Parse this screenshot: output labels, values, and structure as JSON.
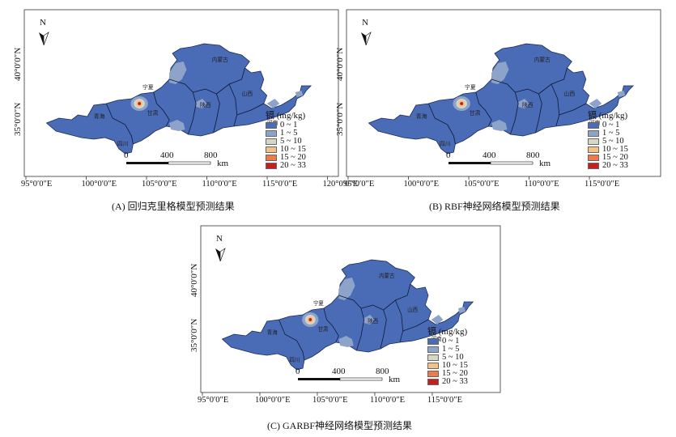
{
  "legend": {
    "title": "镉 (mg/kg)",
    "classes": [
      {
        "label": "0 ~ 1",
        "color": "#4a6bb5"
      },
      {
        "label": "1 ~ 5",
        "color": "#8ea3c9"
      },
      {
        "label": "5 ~ 10",
        "color": "#d4d6c6"
      },
      {
        "label": "10 ~ 15",
        "color": "#f2c186"
      },
      {
        "label": "15 ~ 20",
        "color": "#ee7a4c"
      },
      {
        "label": "20 ~ 33",
        "color": "#c81e1e"
      }
    ]
  },
  "north_label": "N",
  "scale": {
    "t0": "0",
    "t1": "400",
    "t2": "800",
    "unit": "km"
  },
  "lat_labels": [
    "40°0′0″N",
    "35°0′0″N"
  ],
  "provinces": [
    "内蒙古",
    "宁夏",
    "甘肃",
    "陕西",
    "山西",
    "青海",
    "河南",
    "四川"
  ],
  "panels": [
    {
      "caption": "(A) 回归克里格模型预测结果",
      "lon_labels": [
        "95°0′0″E",
        "100°0′0″E",
        "105°0′0″E",
        "110°0′0″E",
        "115°0′0″E",
        "120°0′0″E"
      ]
    },
    {
      "caption": "(B) RBF神经网络模型预测结果",
      "lon_labels": [
        "95°0′0″E",
        "100°0′0″E",
        "105°0′0″E",
        "110°0′0″E",
        "115°0′0″E"
      ]
    },
    {
      "caption": "(C) GARBF神经网络模型预测结果",
      "lon_labels": [
        "95°0′0″E",
        "100°0′0″E",
        "105°0′0″E",
        "110°0′0″E",
        "115°0′0″E"
      ]
    }
  ]
}
